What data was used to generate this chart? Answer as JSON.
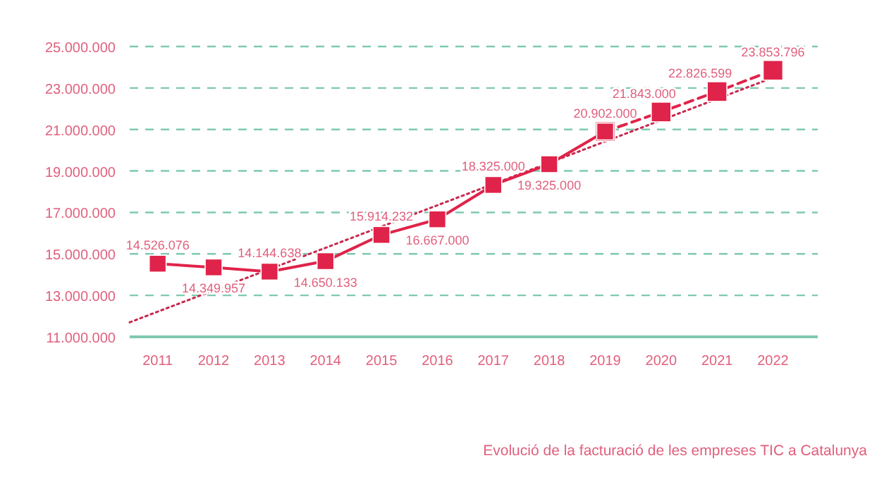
{
  "chart_data": {
    "type": "line",
    "title": "Evolució de la facturació de les empreses TIC a Catalunya",
    "x": [
      2011,
      2012,
      2013,
      2014,
      2015,
      2016,
      2017,
      2018,
      2019,
      2020,
      2021,
      2022
    ],
    "xlim": [
      2010.5,
      2022.8
    ],
    "xticks": [
      2011,
      2012,
      2013,
      2014,
      2015,
      2016,
      2017,
      2018,
      2019,
      2020,
      2021,
      2022
    ],
    "ylim": [
      11000000,
      25000000
    ],
    "yticks": [
      {
        "value": 11000000,
        "label": "11.000.000"
      },
      {
        "value": 13000000,
        "label": "13.000.000"
      },
      {
        "value": 15000000,
        "label": "15.000.000"
      },
      {
        "value": 17000000,
        "label": "17.000.000"
      },
      {
        "value": 19000000,
        "label": "19.000.000"
      },
      {
        "value": 21000000,
        "label": "21.000.000"
      },
      {
        "value": 23000000,
        "label": "23.000.000"
      },
      {
        "value": 25000000,
        "label": "25.000.000"
      }
    ],
    "grid": "y",
    "marker": "square",
    "series": [
      {
        "color": "#e0234a",
        "line_style": "solid",
        "values": [
          14526076,
          14349957,
          14144638,
          14650133,
          15914232,
          16667000,
          18325000,
          19325000,
          20902000,
          null,
          null,
          null
        ],
        "value_labels": [
          "14.526.076",
          "14.349.957",
          "14.144.638",
          "14.650.133",
          "15.914.232",
          "16.667.000",
          "18.325.000",
          "19.325.000",
          "20.902.000",
          null,
          null,
          null
        ]
      },
      {
        "color": "#e0234a",
        "line_style": "dashed",
        "values": [
          null,
          null,
          null,
          null,
          null,
          null,
          null,
          null,
          20902000,
          21843000,
          22826599,
          23853796
        ],
        "value_labels": [
          null,
          null,
          null,
          null,
          null,
          null,
          null,
          null,
          null,
          "21.843.000",
          "22.826.599",
          "23.853.796"
        ]
      },
      {
        "type": "line",
        "color": "#c8284e",
        "line_style": "dotted",
        "marker": "none",
        "x": [
          2010.5,
          2022
        ],
        "values": [
          11700000,
          23500000
        ]
      }
    ]
  }
}
